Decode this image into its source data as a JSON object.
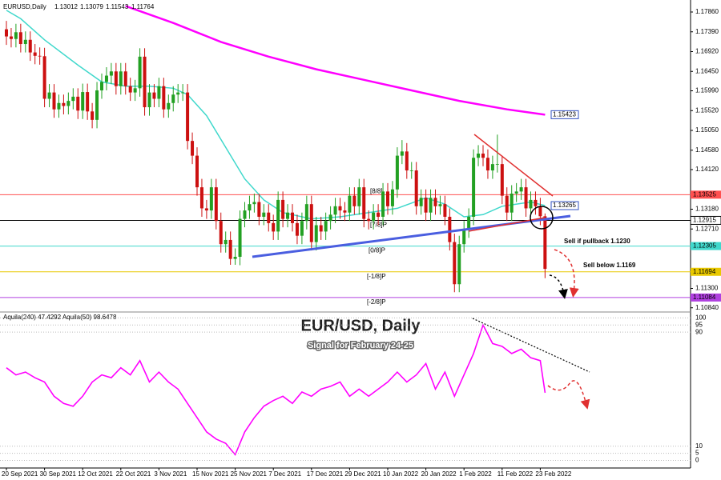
{
  "chart_data": [
    {
      "type": "candlestick",
      "symbol": "EURUSD,Daily",
      "title": "EUR/USD, Daily",
      "subtitle": "Signal for February 24-25",
      "categories": [
        "20 Sep 2021",
        null,
        null,
        null,
        null,
        null,
        null,
        null,
        "30 Sep 2021",
        null,
        null,
        null,
        null,
        null,
        null,
        null,
        "12 Oct 2021",
        null,
        null,
        null,
        null,
        null,
        null,
        null,
        "22 Oct 2021",
        null,
        null,
        null,
        null,
        null,
        null,
        null,
        "3 Nov 2021",
        null,
        null,
        null,
        null,
        null,
        null,
        null,
        "15 Nov 2021",
        null,
        null,
        null,
        null,
        null,
        null,
        null,
        "25 Nov 2021",
        null,
        null,
        null,
        null,
        null,
        null,
        null,
        "7 Dec 2021",
        null,
        null,
        null,
        null,
        null,
        null,
        null,
        "17 Dec 2021",
        null,
        null,
        null,
        null,
        null,
        null,
        null,
        "29 Dec 2021",
        null,
        null,
        null,
        null,
        null,
        null,
        null,
        "10 Jan 2022",
        null,
        null,
        null,
        null,
        null,
        null,
        null,
        "20 Jan 2022",
        null,
        null,
        null,
        null,
        null,
        null,
        null,
        "1 Feb 2022",
        null,
        null,
        null,
        null,
        null,
        null,
        null,
        "11 Feb 2022",
        null,
        null,
        null,
        null,
        null,
        null,
        null,
        "23 Feb 2022",
        null
      ],
      "open": [
        1.1745,
        1.1728,
        1.1722,
        1.1738,
        1.171,
        1.172,
        1.169,
        1.1682,
        1.1681,
        1.158,
        1.1595,
        1.1555,
        1.157,
        1.1563,
        1.1575,
        1.1585,
        1.1552,
        1.1596,
        1.155,
        1.153,
        1.16,
        1.162,
        1.1635,
        1.1645,
        1.161,
        1.1645,
        1.161,
        1.1595,
        1.1605,
        1.168,
        1.156,
        1.1595,
        1.158,
        1.161,
        1.1555,
        1.157,
        1.159,
        1.1595,
        1.1595,
        1.148,
        1.1445,
        1.137,
        1.132,
        1.1315,
        1.137,
        1.129,
        1.1235,
        1.1245,
        1.12,
        1.1205,
        1.1295,
        1.1315,
        1.133,
        1.1335,
        1.13,
        1.131,
        1.1285,
        1.1265,
        1.134,
        1.1295,
        1.131,
        1.1285,
        1.1255,
        1.129,
        1.133,
        1.124,
        1.128,
        1.1265,
        1.129,
        1.1305,
        1.1325,
        1.1315,
        1.131,
        1.135,
        1.1325,
        1.137,
        1.1295,
        1.129,
        1.131,
        1.13,
        1.136,
        1.1325,
        1.1365,
        1.1445,
        1.1455,
        1.141,
        1.141,
        1.1325,
        1.1345,
        1.131,
        1.1345,
        1.1325,
        1.133,
        1.13,
        1.124,
        1.114,
        1.1235,
        1.127,
        1.13,
        1.144,
        1.145,
        1.144,
        1.141,
        1.1425,
        1.1425,
        1.135,
        1.131,
        1.1355,
        1.136,
        1.137,
        1.132,
        1.134,
        1.1325,
        1.13012
      ],
      "high": [
        1.1765,
        1.1748,
        1.1758,
        1.1758,
        1.174,
        1.174,
        1.171,
        1.1702,
        1.1701,
        1.1615,
        1.1615,
        1.159,
        1.159,
        1.1595,
        1.1605,
        1.1605,
        1.1616,
        1.1616,
        1.157,
        1.162,
        1.164,
        1.1655,
        1.1665,
        1.1665,
        1.1665,
        1.1665,
        1.163,
        1.1625,
        1.17,
        1.17,
        1.1615,
        1.1615,
        1.163,
        1.163,
        1.159,
        1.161,
        1.1615,
        1.1615,
        1.1615,
        1.15,
        1.1465,
        1.139,
        1.134,
        1.139,
        1.139,
        1.131,
        1.1265,
        1.1265,
        1.1225,
        1.1315,
        1.1335,
        1.135,
        1.1355,
        1.1355,
        1.133,
        1.133,
        1.1305,
        1.136,
        1.136,
        1.133,
        1.133,
        1.1305,
        1.131,
        1.135,
        1.135,
        1.13,
        1.13,
        1.131,
        1.1325,
        1.1345,
        1.1345,
        1.1335,
        1.137,
        1.137,
        1.139,
        1.139,
        1.1315,
        1.133,
        1.133,
        1.138,
        1.138,
        1.1385,
        1.1465,
        1.1482,
        1.1475,
        1.143,
        1.143,
        1.1365,
        1.1365,
        1.1365,
        1.1365,
        1.135,
        1.135,
        1.132,
        1.126,
        1.1255,
        1.129,
        1.132,
        1.146,
        1.147,
        1.147,
        1.146,
        1.1445,
        1.1495,
        1.1445,
        1.137,
        1.1375,
        1.138,
        1.139,
        1.139,
        1.136,
        1.136,
        1.1345,
        1.13079
      ],
      "low": [
        1.1708,
        1.1702,
        1.1702,
        1.169,
        1.169,
        1.167,
        1.1662,
        1.1661,
        1.156,
        1.156,
        1.1535,
        1.1535,
        1.1543,
        1.1543,
        1.1555,
        1.1532,
        1.1532,
        1.153,
        1.151,
        1.151,
        1.158,
        1.16,
        1.1615,
        1.159,
        1.159,
        1.159,
        1.1575,
        1.1575,
        1.1585,
        1.154,
        1.154,
        1.156,
        1.156,
        1.1535,
        1.1535,
        1.155,
        1.157,
        1.1575,
        1.146,
        1.1425,
        1.135,
        1.13,
        1.1295,
        1.1295,
        1.127,
        1.1215,
        1.1215,
        1.1186,
        1.1186,
        1.1185,
        1.1275,
        1.1295,
        1.131,
        1.128,
        1.128,
        1.1265,
        1.1245,
        1.1245,
        1.1275,
        1.1275,
        1.1265,
        1.1235,
        1.1235,
        1.127,
        1.122,
        1.122,
        1.1245,
        1.1245,
        1.127,
        1.1285,
        1.1295,
        1.129,
        1.129,
        1.1305,
        1.1305,
        1.1275,
        1.127,
        1.127,
        1.128,
        1.128,
        1.1305,
        1.1305,
        1.1345,
        1.1425,
        1.139,
        1.139,
        1.1305,
        1.1305,
        1.129,
        1.129,
        1.1305,
        1.1305,
        1.128,
        1.122,
        1.1121,
        1.1121,
        1.1215,
        1.125,
        1.128,
        1.142,
        1.142,
        1.139,
        1.139,
        1.1405,
        1.133,
        1.129,
        1.129,
        1.1335,
        1.134,
        1.13,
        1.13,
        1.1305,
        1.128,
        1.11543
      ],
      "close": [
        1.1728,
        1.1722,
        1.1738,
        1.171,
        1.172,
        1.169,
        1.1682,
        1.1681,
        1.158,
        1.1595,
        1.1555,
        1.157,
        1.1563,
        1.1575,
        1.1585,
        1.1552,
        1.1596,
        1.155,
        1.153,
        1.16,
        1.162,
        1.1635,
        1.1645,
        1.161,
        1.1645,
        1.161,
        1.1595,
        1.1605,
        1.168,
        1.156,
        1.1595,
        1.158,
        1.161,
        1.1555,
        1.157,
        1.159,
        1.1595,
        1.1595,
        1.148,
        1.1445,
        1.137,
        1.132,
        1.1315,
        1.137,
        1.129,
        1.1235,
        1.1245,
        1.12,
        1.1205,
        1.1295,
        1.1315,
        1.133,
        1.1335,
        1.13,
        1.131,
        1.1285,
        1.1265,
        1.134,
        1.1295,
        1.131,
        1.1285,
        1.1255,
        1.129,
        1.133,
        1.124,
        1.128,
        1.1265,
        1.129,
        1.1305,
        1.1325,
        1.1315,
        1.131,
        1.135,
        1.1325,
        1.137,
        1.1295,
        1.129,
        1.131,
        1.13,
        1.136,
        1.1325,
        1.1365,
        1.1445,
        1.1455,
        1.141,
        1.141,
        1.1325,
        1.1345,
        1.131,
        1.1345,
        1.1325,
        1.133,
        1.13,
        1.124,
        1.114,
        1.1235,
        1.127,
        1.13,
        1.144,
        1.145,
        1.144,
        1.141,
        1.1425,
        1.1425,
        1.135,
        1.131,
        1.1355,
        1.136,
        1.137,
        1.132,
        1.134,
        1.1325,
        1.13012,
        1.11764
      ],
      "up_color": "#22a022",
      "down_color": "#cc1010",
      "overlays": [
        {
          "color": "#ff00ff",
          "x": [
            25,
            35,
            45,
            55,
            65,
            75,
            85,
            95,
            105,
            113
          ],
          "values": [
            1.18,
            1.176,
            1.1715,
            1.168,
            1.165,
            1.1625,
            1.16,
            1.1575,
            1.1555,
            1.15423
          ],
          "end_label": "1.15423"
        },
        {
          "color": "#40d8cc",
          "x": [
            0,
            3,
            8,
            15,
            20,
            25,
            30,
            35,
            38,
            42,
            46,
            50,
            54,
            58,
            64,
            70,
            76,
            82,
            88,
            92,
            96,
            100,
            104,
            110,
            113
          ],
          "values": [
            1.179,
            1.177,
            1.172,
            1.166,
            1.162,
            1.161,
            1.161,
            1.1605,
            1.159,
            1.154,
            1.1465,
            1.139,
            1.134,
            1.131,
            1.1295,
            1.13,
            1.131,
            1.132,
            1.1345,
            1.133,
            1.13,
            1.1305,
            1.1325,
            1.1335,
            1.13265
          ],
          "end_label": "1.13265"
        }
      ],
      "levels": [
        {
          "value": 1.13525,
          "label": "1.13525",
          "color": "#ff5050",
          "tag": "[8/8]"
        },
        {
          "value": 1.12915,
          "label": "1.12915",
          "color": "#000000",
          "tag": "[7/8]P"
        },
        {
          "value": 1.12305,
          "label": "1.12305",
          "color": "#40d8cc",
          "tag": "[0/8]P"
        },
        {
          "value": 1.11694,
          "label": "1.11694",
          "color": "#e8c800",
          "tag": "[-1/8]P"
        },
        {
          "value": 1.11084,
          "label": "1.11084",
          "color": "#b040e0",
          "tag": "[-2/8]P"
        }
      ],
      "annotations": [
        {
          "text": "Sell if pullback 1.1230",
          "color": "#e03030"
        },
        {
          "text": "Sell below 1.1169",
          "color": "#000000"
        }
      ],
      "ylim": [
        1.1074,
        1.1805
      ],
      "yticks": [
        {
          "value": 1.1786,
          "label": "1.17860"
        },
        {
          "value": 1.1739,
          "label": "1.17390"
        },
        {
          "value": 1.1692,
          "label": "1.16920"
        },
        {
          "value": 1.1645,
          "label": "1.16450"
        },
        {
          "value": 1.1599,
          "label": "1.15990"
        },
        {
          "value": 1.1552,
          "label": "1.15520"
        },
        {
          "value": 1.1505,
          "label": "1.15050"
        },
        {
          "value": 1.1458,
          "label": "1.14580"
        },
        {
          "value": 1.1412,
          "label": "1.14120"
        },
        {
          "value": 1.1318,
          "label": "1.13180"
        },
        {
          "value": 1.1271,
          "label": "1.12710"
        },
        {
          "value": 1.113,
          "label": "1.11300"
        },
        {
          "value": 1.1084,
          "label": "1.10840"
        }
      ]
    },
    {
      "type": "line",
      "title": "Aquila(240) 47.4292 Aquila(50) 98.6478",
      "color": "#ff00ff",
      "x": [
        0,
        2,
        4,
        6,
        8,
        10,
        12,
        14,
        16,
        18,
        20,
        22,
        24,
        26,
        28,
        30,
        32,
        34,
        36,
        38,
        40,
        42,
        44,
        46,
        48,
        50,
        52,
        54,
        56,
        58,
        60,
        62,
        64,
        66,
        68,
        70,
        72,
        74,
        76,
        78,
        80,
        82,
        84,
        86,
        88,
        90,
        92,
        94,
        96,
        98,
        100,
        102,
        104,
        106,
        108,
        110,
        112,
        113
      ],
      "values": [
        65,
        60,
        62,
        58,
        55,
        45,
        40,
        38,
        45,
        55,
        60,
        58,
        65,
        60,
        70,
        55,
        62,
        55,
        50,
        40,
        30,
        20,
        15,
        12,
        4,
        20,
        30,
        38,
        42,
        45,
        40,
        48,
        45,
        50,
        52,
        55,
        45,
        50,
        45,
        50,
        55,
        62,
        55,
        60,
        68,
        50,
        62,
        45,
        60,
        75,
        95,
        82,
        80,
        75,
        78,
        72,
        70,
        47.4292
      ],
      "ylim": [
        -7,
        103
      ],
      "yticks": [
        100,
        95,
        90,
        10,
        5,
        0
      ],
      "grid": true
    }
  ]
}
